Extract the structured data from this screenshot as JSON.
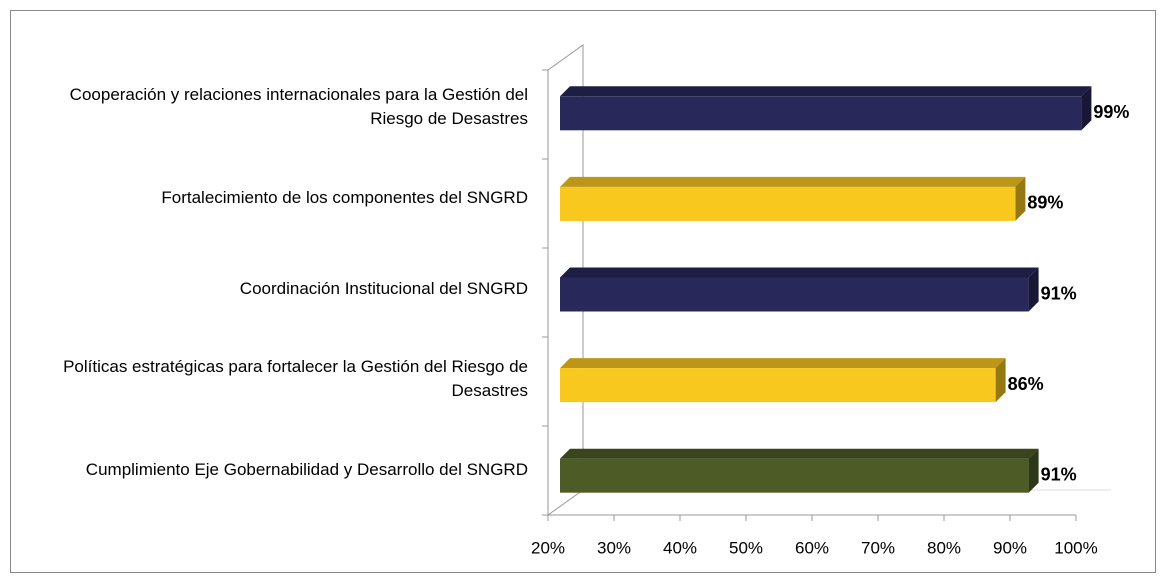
{
  "chart_data": {
    "type": "bar3d_horizontal",
    "categories": [
      "Cooperación y relaciones internacionales para la Gestión del Riesgo de Desastres",
      "Fortalecimiento de los componentes del SNGRD",
      "Coordinación Institucional del SNGRD",
      "Políticas estratégicas para  fortalecer la Gestión del Riesgo de Desastres",
      "Cumplimiento Eje Gobernabilidad y Desarrollo del SNGRD"
    ],
    "values": [
      99,
      89,
      91,
      86,
      91
    ],
    "value_labels": [
      "99%",
      "89%",
      "91%",
      "86%",
      "91%"
    ],
    "colors": [
      "#28285a",
      "#f9c81e",
      "#28285a",
      "#f9c81e",
      "#4d5b26"
    ],
    "xlim": [
      20,
      100
    ],
    "xticks": [
      {
        "value": 20,
        "label": "20%"
      },
      {
        "value": 30,
        "label": "30%"
      },
      {
        "value": 40,
        "label": "40%"
      },
      {
        "value": 50,
        "label": "50%"
      },
      {
        "value": 60,
        "label": "60%"
      },
      {
        "value": 70,
        "label": "70%"
      },
      {
        "value": 80,
        "label": "80%"
      },
      {
        "value": 90,
        "label": "90%"
      },
      {
        "value": 100,
        "label": "100%"
      }
    ]
  }
}
